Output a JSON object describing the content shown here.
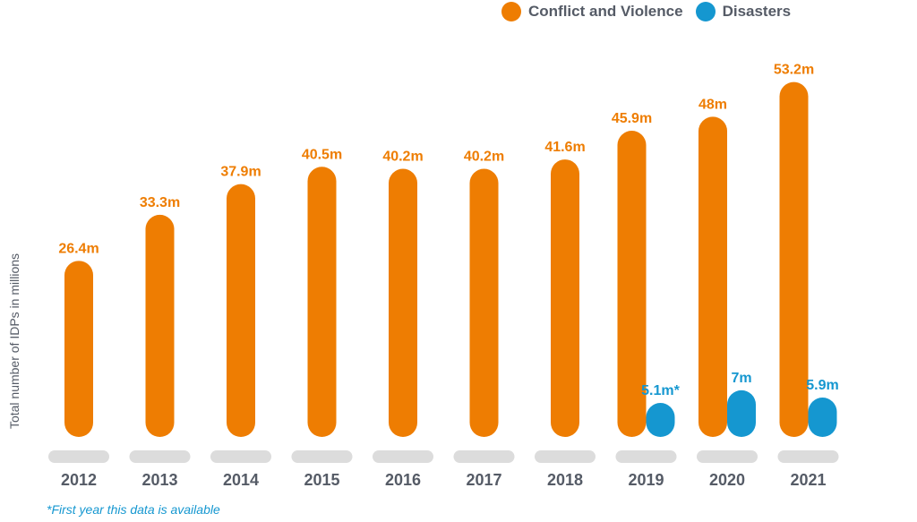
{
  "legend": [
    {
      "label": "Conflict and Violence",
      "color": "#ee7d02"
    },
    {
      "label": "Disasters",
      "color": "#1597d0"
    }
  ],
  "footnote": "*First year this data is available",
  "chart_data": {
    "type": "bar",
    "title": "",
    "xlabel": "",
    "ylabel": "Total number of IDPs in millions",
    "categories": [
      "2012",
      "2013",
      "2014",
      "2015",
      "2016",
      "2017",
      "2018",
      "2019",
      "2020",
      "2021"
    ],
    "ylim": [
      0,
      55
    ],
    "grid": false,
    "legend_position": "top-right",
    "series": [
      {
        "name": "Conflict and Violence",
        "color": "#ee7d02",
        "values": [
          26.4,
          33.3,
          37.9,
          40.5,
          40.2,
          40.2,
          41.6,
          45.9,
          48,
          53.2
        ],
        "labels": [
          "26.4m",
          "33.3m",
          "37.9m",
          "40.5m",
          "40.2m",
          "40.2m",
          "41.6m",
          "45.9m",
          "48m",
          "53.2m"
        ]
      },
      {
        "name": "Disasters",
        "color": "#1597d0",
        "values": [
          null,
          null,
          null,
          null,
          null,
          null,
          null,
          5.1,
          7,
          5.9
        ],
        "labels": [
          null,
          null,
          null,
          null,
          null,
          null,
          null,
          "5.1m*",
          "7m",
          "5.9m"
        ]
      }
    ]
  }
}
